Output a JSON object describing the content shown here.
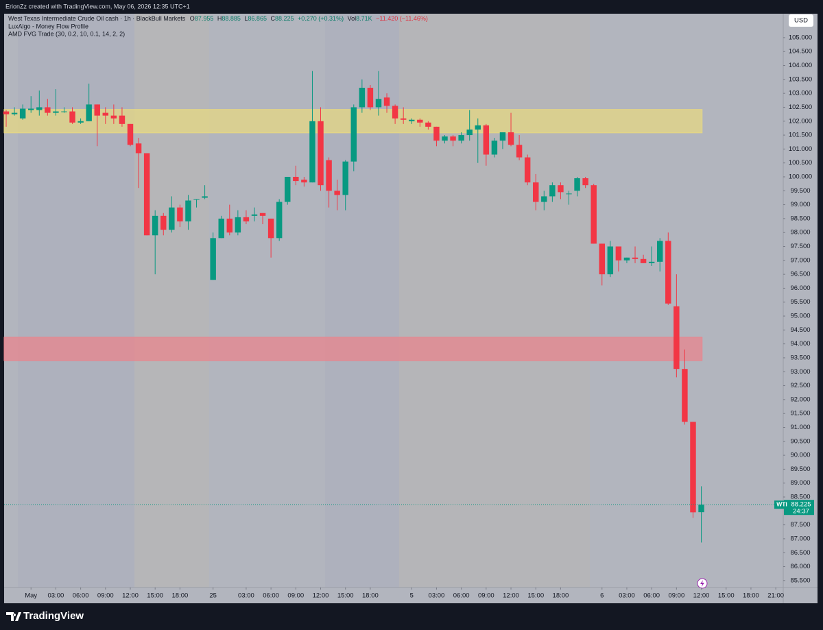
{
  "top_bar": {
    "text": "ErionZz created with TradingView.com, May 06, 2026 12:35 UTC+1"
  },
  "legend": {
    "title": "West Texas Intermediate Crude Oil cash · 1h · BlackBull Markets",
    "ohlc_labels": [
      "O",
      "H",
      "L",
      "C"
    ],
    "change": "+0.270 (+0.31%)",
    "vol_label": "Vol",
    "vol": "8.71K",
    "change_total": "−11.420 (−11.46%)",
    "indicators": [
      "LuxAlgo - Money Flow Profile",
      "AMD FVG Trade (30, 0.2, 10, 0.1, 14, 2, 2)"
    ]
  },
  "currency": "USD",
  "price_label": {
    "symbol": "WTI",
    "countdown": "24:37"
  },
  "footer": {
    "brand": "TradingView"
  },
  "chart_data": {
    "type": "candlestick",
    "up_color": "#089981",
    "down_color": "#f23645",
    "grid": false,
    "x": [
      0,
      1,
      2,
      3,
      4,
      5,
      6,
      7,
      8,
      9,
      10,
      11,
      12,
      13,
      14,
      15,
      16,
      17,
      18,
      19,
      20,
      21,
      22,
      23,
      24,
      25,
      26,
      27,
      28,
      29,
      30,
      31,
      32,
      33,
      34,
      35,
      36,
      37,
      38,
      39,
      40,
      41,
      42,
      43,
      44,
      45,
      46,
      47,
      48,
      49,
      50,
      51,
      52,
      53,
      54,
      55,
      56,
      57,
      58,
      59,
      60,
      61,
      62,
      63,
      64,
      65,
      66,
      67,
      68,
      69,
      70,
      71,
      72,
      73,
      74,
      75,
      76,
      77,
      78,
      79,
      80,
      81,
      82,
      83,
      84
    ],
    "open": [
      102.35,
      102.25,
      102.1,
      102.4,
      102.4,
      102.5,
      102.3,
      102.35,
      102.35,
      101.95,
      102.0,
      102.6,
      102.3,
      102.2,
      102.2,
      101.9,
      101.2,
      100.85,
      97.9,
      98.6,
      98.1,
      98.9,
      98.4,
      99.2,
      99.25,
      96.3,
      97.8,
      98.5,
      98.0,
      98.55,
      98.6,
      98.7,
      98.5,
      97.8,
      99.1,
      100.0,
      99.9,
      99.8,
      102.0,
      100.6,
      99.5,
      99.35,
      100.55,
      102.5,
      103.2,
      102.5,
      102.85,
      102.55,
      102.1,
      102.0,
      102.05,
      101.95,
      101.8,
      101.3,
      101.45,
      101.3,
      101.5,
      101.7,
      101.85,
      100.8,
      101.3,
      101.6,
      101.15,
      100.7,
      99.8,
      99.1,
      99.3,
      99.7,
      99.4,
      99.5,
      99.95,
      99.7,
      97.6,
      96.5,
      97.5,
      97.0,
      97.1,
      97.05,
      96.9,
      96.95,
      97.7,
      95.35,
      93.1,
      91.2,
      87.955
    ],
    "high": [
      102.4,
      102.5,
      102.6,
      102.9,
      103.1,
      102.8,
      103.15,
      102.5,
      102.5,
      102.1,
      103.35,
      102.6,
      102.5,
      102.6,
      102.5,
      101.9,
      101.4,
      100.85,
      98.8,
      98.7,
      99.3,
      99.0,
      99.35,
      99.2,
      99.7,
      98.0,
      98.6,
      99.0,
      98.8,
      98.8,
      98.9,
      98.7,
      98.5,
      99.2,
      100.0,
      100.4,
      100.0,
      103.8,
      102.5,
      100.7,
      99.9,
      100.6,
      102.6,
      103.5,
      103.3,
      103.8,
      103.0,
      102.6,
      102.5,
      102.1,
      102.1,
      102.0,
      101.8,
      101.5,
      101.5,
      101.6,
      102.4,
      102.1,
      101.9,
      101.4,
      101.6,
      102.3,
      101.5,
      100.8,
      100.1,
      99.5,
      99.8,
      99.8,
      99.5,
      100.0,
      100.0,
      99.75,
      97.6,
      97.7,
      97.5,
      97.1,
      97.5,
      97.2,
      97.5,
      97.8,
      98.0,
      96.5,
      93.8,
      91.2,
      88.885
    ],
    "low": [
      101.8,
      102.2,
      102.05,
      102.3,
      102.2,
      102.2,
      102.2,
      102.3,
      101.9,
      101.9,
      102.0,
      101.1,
      101.9,
      101.9,
      101.8,
      101.1,
      99.6,
      97.9,
      96.5,
      97.9,
      98.0,
      98.2,
      98.1,
      98.9,
      99.2,
      96.3,
      97.8,
      97.9,
      97.9,
      98.3,
      98.4,
      98.3,
      97.1,
      97.7,
      99.0,
      99.7,
      99.65,
      99.8,
      99.5,
      98.9,
      98.8,
      98.8,
      100.2,
      102.3,
      102.4,
      102.2,
      102.3,
      101.9,
      101.9,
      101.9,
      101.8,
      101.7,
      101.1,
      101.2,
      101.1,
      101.2,
      101.3,
      100.5,
      100.4,
      100.7,
      101.0,
      101.1,
      100.6,
      99.7,
      98.8,
      98.8,
      99.1,
      99.2,
      99.0,
      99.3,
      99.6,
      97.6,
      96.1,
      96.4,
      96.6,
      96.9,
      96.9,
      96.9,
      96.8,
      96.6,
      95.4,
      92.8,
      91.1,
      87.75,
      86.865
    ],
    "close": [
      102.25,
      102.3,
      102.45,
      102.45,
      102.5,
      102.3,
      102.35,
      102.35,
      101.95,
      102.0,
      102.6,
      102.2,
      102.2,
      102.1,
      101.9,
      101.15,
      100.85,
      97.9,
      98.6,
      98.1,
      98.9,
      98.4,
      99.15,
      99.2,
      99.3,
      97.8,
      98.5,
      98.0,
      98.55,
      98.4,
      98.65,
      98.6,
      97.8,
      99.1,
      100.0,
      99.85,
      99.8,
      102.0,
      99.7,
      99.5,
      99.35,
      100.55,
      102.5,
      103.2,
      102.5,
      102.8,
      102.55,
      102.1,
      102.05,
      102.05,
      101.95,
      101.8,
      101.3,
      101.45,
      101.3,
      101.5,
      101.7,
      101.85,
      100.8,
      101.3,
      101.6,
      101.15,
      100.7,
      99.8,
      99.1,
      99.3,
      99.7,
      99.45,
      99.4,
      99.95,
      99.7,
      97.6,
      96.5,
      97.5,
      97.0,
      97.1,
      97.05,
      96.9,
      96.95,
      97.7,
      95.45,
      93.1,
      91.2,
      87.95,
      88.225
    ],
    "zones": [
      {
        "y": [
          101.58,
          102.42
        ],
        "x": [
          -0.25,
          84.1
        ],
        "color": "#e6d883"
      },
      {
        "y": [
          93.4,
          94.24
        ],
        "x": [
          -0.25,
          84.1
        ],
        "color": "#e8858d"
      }
    ],
    "xlim": [
      -0.25,
      93.9
    ],
    "ylim": [
      85.25,
      105.86
    ],
    "xticks": [
      {
        "value": 3,
        "label": "May"
      },
      {
        "value": 6,
        "label": "03:00"
      },
      {
        "value": 9,
        "label": "06:00"
      },
      {
        "value": 12,
        "label": "09:00"
      },
      {
        "value": 15,
        "label": "12:00"
      },
      {
        "value": 18,
        "label": "15:00"
      },
      {
        "value": 21,
        "label": "18:00"
      },
      25,
      {
        "value": 29,
        "label": "03:00"
      },
      {
        "value": 32,
        "label": "06:00"
      },
      {
        "value": 35,
        "label": "09:00"
      },
      {
        "value": 38,
        "label": "12:00"
      },
      {
        "value": 41,
        "label": "15:00"
      },
      {
        "value": 44,
        "label": "18:00"
      },
      {
        "value": 49,
        "label": "5"
      },
      {
        "value": 52,
        "label": "03:00"
      },
      {
        "value": 55,
        "label": "06:00"
      },
      {
        "value": 58,
        "label": "09:00"
      },
      {
        "value": 61,
        "label": "12:00"
      },
      {
        "value": 64,
        "label": "15:00"
      },
      {
        "value": 67,
        "label": "18:00"
      },
      {
        "value": 72,
        "label": "6"
      },
      {
        "value": 75,
        "label": "03:00"
      },
      {
        "value": 78,
        "label": "06:00"
      },
      {
        "value": 81,
        "label": "09:00"
      },
      {
        "value": 84,
        "label": "12:00"
      },
      {
        "value": 87,
        "label": "15:00"
      },
      {
        "value": 90,
        "label": "18:00"
      },
      {
        "value": 93,
        "label": "21:00"
      }
    ],
    "yticks": [
      {
        "value": 85.5,
        "label": "85.500"
      },
      {
        "value": 86,
        "label": "86.000"
      },
      {
        "value": 86.5,
        "label": "86.500"
      },
      {
        "value": 87,
        "label": "87.000"
      },
      {
        "value": 87.5,
        "label": "87.500"
      },
      {
        "value": 88.5,
        "label": "88.500"
      },
      {
        "value": 89,
        "label": "89.000"
      },
      {
        "value": 89.5,
        "label": "89.500"
      },
      {
        "value": 90,
        "label": "90.000"
      },
      {
        "value": 90.5,
        "label": "90.500"
      },
      {
        "value": 91,
        "label": "91.000"
      },
      {
        "value": 91.5,
        "label": "91.500"
      },
      {
        "value": 92,
        "label": "92.000"
      },
      {
        "value": 92.5,
        "label": "92.500"
      },
      {
        "value": 93,
        "label": "93.000"
      },
      {
        "value": 93.5,
        "label": "93.500"
      },
      {
        "value": 94,
        "label": "94.000"
      },
      {
        "value": 94.5,
        "label": "94.500"
      },
      {
        "value": 95,
        "label": "95.000"
      },
      {
        "value": 95.5,
        "label": "95.500"
      },
      {
        "value": 96,
        "label": "96.000"
      },
      {
        "value": 96.5,
        "label": "96.500"
      },
      {
        "value": 97,
        "label": "97.000"
      },
      {
        "value": 97.5,
        "label": "97.500"
      },
      {
        "value": 98,
        "label": "98.000"
      },
      {
        "value": 98.5,
        "label": "98.500"
      },
      {
        "value": 99,
        "label": "99.000"
      },
      {
        "value": 99.5,
        "label": "99.500"
      },
      {
        "value": 100,
        "label": "100.000"
      },
      {
        "value": 100.5,
        "label": "100.500"
      },
      {
        "value": 101,
        "label": "101.000"
      },
      {
        "value": 101.5,
        "label": "101.500"
      },
      {
        "value": 102,
        "label": "102.000"
      },
      {
        "value": 102.5,
        "label": "102.500"
      },
      {
        "value": 103,
        "label": "103.000"
      },
      {
        "value": 103.5,
        "label": "103.500"
      },
      {
        "value": 104,
        "label": "104.000"
      },
      {
        "value": 104.5,
        "label": "104.500"
      },
      {
        "value": 105,
        "label": "105.000"
      }
    ]
  }
}
